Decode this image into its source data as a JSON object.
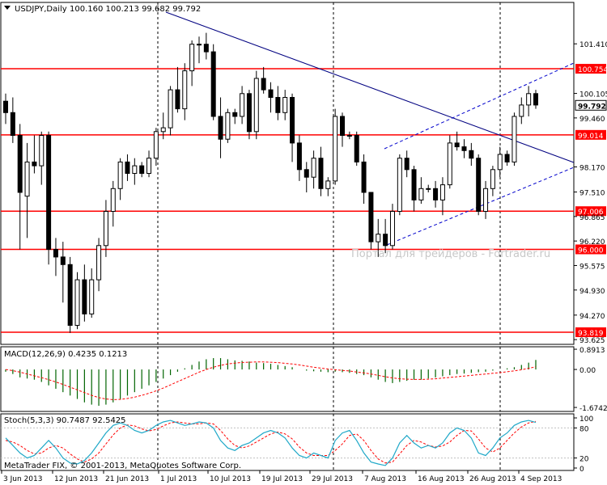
{
  "chart_data": {
    "type": "candlestick",
    "title": "USDJPY,Daily",
    "ohlc_header": "100.160 100.213 99.682 99.792",
    "current_price": "99.792",
    "watermark": "Портал для трейдеров - Fortrader.ru",
    "copyright": "MetaTrader FIX, © 2001-2013, MetaQuotes Software Corp.",
    "price_axis": {
      "ylim": [
        93.5,
        102.5
      ],
      "ticks": [
        "101.410",
        "100.105",
        "99.460",
        "98.170",
        "97.510",
        "96.865",
        "96.220",
        "95.575",
        "94.930",
        "94.270",
        "93.625"
      ]
    },
    "date_labels": [
      "3 Jun 2013",
      "12 Jun 2013",
      "21 Jun 2013",
      "1 Jul 2013",
      "10 Jul 2013",
      "19 Jul 2013",
      "29 Jul 2013",
      "7 Aug 2013",
      "16 Aug 2013",
      "26 Aug 2013",
      "4 Sep 2013"
    ],
    "candles": [
      [
        99.9,
        100.1,
        99.3,
        99.6
      ],
      [
        99.6,
        100.0,
        98.8,
        99.0
      ],
      [
        99.0,
        99.3,
        96.0,
        97.5
      ],
      [
        97.4,
        98.8,
        96.3,
        98.3
      ],
      [
        98.3,
        99.0,
        98.0,
        98.2
      ],
      [
        98.2,
        99.1,
        97.7,
        99.0
      ],
      [
        99.0,
        99.1,
        95.6,
        96.0
      ],
      [
        96.0,
        96.3,
        95.3,
        95.8
      ],
      [
        95.8,
        96.2,
        94.6,
        95.6
      ],
      [
        95.6,
        95.8,
        93.8,
        94.0
      ],
      [
        94.0,
        95.4,
        93.9,
        95.2
      ],
      [
        95.2,
        95.6,
        94.1,
        94.3
      ],
      [
        94.3,
        95.5,
        94.2,
        95.2
      ],
      [
        95.2,
        96.3,
        94.9,
        96.1
      ],
      [
        96.1,
        97.3,
        95.8,
        97.0
      ],
      [
        97.0,
        97.8,
        96.6,
        97.6
      ],
      [
        97.6,
        98.4,
        97.3,
        98.3
      ],
      [
        98.3,
        98.5,
        97.8,
        98.0
      ],
      [
        98.0,
        98.4,
        97.7,
        98.2
      ],
      [
        98.2,
        98.3,
        97.9,
        98.0
      ],
      [
        98.0,
        98.6,
        97.9,
        98.4
      ],
      [
        98.4,
        99.2,
        98.2,
        99.1
      ],
      [
        99.1,
        99.6,
        98.9,
        99.2
      ],
      [
        99.2,
        100.3,
        99.0,
        100.2
      ],
      [
        100.2,
        100.8,
        99.6,
        99.7
      ],
      [
        99.7,
        100.9,
        99.4,
        100.7
      ],
      [
        100.7,
        101.5,
        100.3,
        101.4
      ],
      [
        101.4,
        101.6,
        100.9,
        101.4
      ],
      [
        101.4,
        101.7,
        101.0,
        101.2
      ],
      [
        101.2,
        101.4,
        99.4,
        99.5
      ],
      [
        99.5,
        100.0,
        98.4,
        98.9
      ],
      [
        98.9,
        99.7,
        98.8,
        99.6
      ],
      [
        99.6,
        99.7,
        99.3,
        99.5
      ],
      [
        99.5,
        100.3,
        99.3,
        100.1
      ],
      [
        100.1,
        100.2,
        98.9,
        99.1
      ],
      [
        99.1,
        100.7,
        98.9,
        100.5
      ],
      [
        100.5,
        100.8,
        100.1,
        100.2
      ],
      [
        100.2,
        100.4,
        99.6,
        100.0
      ],
      [
        100.0,
        100.3,
        99.4,
        99.6
      ],
      [
        99.6,
        100.2,
        99.4,
        100.0
      ],
      [
        100.0,
        100.1,
        98.3,
        98.8
      ],
      [
        98.8,
        99.0,
        97.8,
        98.1
      ],
      [
        98.1,
        98.3,
        97.5,
        97.9
      ],
      [
        97.9,
        98.6,
        97.6,
        98.4
      ],
      [
        98.4,
        98.7,
        97.4,
        97.6
      ],
      [
        97.6,
        97.9,
        97.4,
        97.8
      ],
      [
        97.8,
        99.7,
        97.7,
        99.5
      ],
      [
        99.5,
        99.6,
        98.7,
        99.0
      ],
      [
        99.0,
        99.1,
        98.9,
        99.0
      ],
      [
        99.0,
        99.1,
        98.2,
        98.3
      ],
      [
        98.3,
        98.5,
        97.2,
        97.5
      ],
      [
        97.5,
        97.5,
        96.0,
        96.2
      ],
      [
        96.2,
        96.8,
        95.8,
        96.4
      ],
      [
        96.4,
        96.8,
        95.9,
        96.1
      ],
      [
        96.1,
        97.2,
        96.0,
        97.0
      ],
      [
        97.0,
        98.5,
        96.9,
        98.4
      ],
      [
        98.4,
        98.6,
        97.9,
        98.1
      ],
      [
        98.1,
        98.2,
        97.0,
        97.3
      ],
      [
        97.3,
        97.9,
        97.2,
        97.6
      ],
      [
        97.6,
        97.7,
        97.5,
        97.6
      ],
      [
        97.6,
        97.8,
        97.1,
        97.3
      ],
      [
        97.3,
        97.9,
        96.9,
        97.7
      ],
      [
        97.7,
        99.0,
        97.6,
        98.8
      ],
      [
        98.8,
        99.1,
        98.6,
        98.7
      ],
      [
        98.7,
        98.9,
        98.4,
        98.6
      ],
      [
        98.6,
        98.8,
        98.2,
        98.4
      ],
      [
        98.4,
        98.5,
        96.9,
        97.0
      ],
      [
        97.0,
        97.8,
        96.8,
        97.6
      ],
      [
        97.6,
        98.2,
        97.4,
        98.1
      ],
      [
        98.1,
        98.7,
        97.9,
        98.5
      ],
      [
        98.5,
        98.6,
        98.2,
        98.3
      ],
      [
        98.3,
        99.6,
        98.2,
        99.5
      ],
      [
        99.5,
        100.0,
        99.3,
        99.8
      ],
      [
        99.8,
        100.3,
        99.5,
        100.1
      ],
      [
        100.1,
        100.2,
        99.7,
        99.8
      ]
    ],
    "horizontal_levels": [
      "100.754",
      "99.014",
      "97.006",
      "96.000",
      "93.819"
    ],
    "level_color": "#ff0000",
    "trendline_color": "#000080",
    "macd": {
      "label": "MACD(12,26,9) 0.4235 0.1213",
      "ticks": [
        "0.8913",
        "0.00",
        "-1.6742"
      ],
      "ylim": [
        -1.85,
        1.0
      ],
      "histogram": [
        -0.1,
        -0.2,
        -0.35,
        -0.4,
        -0.45,
        -0.55,
        -0.7,
        -0.85,
        -1.0,
        -1.15,
        -1.3,
        -1.45,
        -1.55,
        -1.6,
        -1.55,
        -1.45,
        -1.3,
        -1.15,
        -1.0,
        -0.85,
        -0.7,
        -0.55,
        -0.4,
        -0.25,
        -0.1,
        0.05,
        0.2,
        0.35,
        0.45,
        0.5,
        0.5,
        0.45,
        0.4,
        0.38,
        0.35,
        0.3,
        0.28,
        0.25,
        0.2,
        0.15,
        0.1,
        0.0,
        -0.05,
        -0.08,
        -0.1,
        -0.12,
        -0.1,
        -0.12,
        -0.15,
        -0.2,
        -0.25,
        -0.35,
        -0.45,
        -0.55,
        -0.6,
        -0.55,
        -0.5,
        -0.45,
        -0.45,
        -0.4,
        -0.35,
        -0.3,
        -0.25,
        -0.2,
        -0.18,
        -0.15,
        -0.12,
        -0.1,
        -0.05,
        0.0,
        0.05,
        0.1,
        0.2,
        0.3,
        0.42
      ],
      "signal": [
        0.0,
        -0.05,
        -0.12,
        -0.2,
        -0.28,
        -0.36,
        -0.45,
        -0.55,
        -0.66,
        -0.78,
        -0.9,
        -1.02,
        -1.14,
        -1.24,
        -1.3,
        -1.33,
        -1.32,
        -1.28,
        -1.22,
        -1.14,
        -1.05,
        -0.94,
        -0.82,
        -0.68,
        -0.54,
        -0.4,
        -0.26,
        -0.12,
        0.0,
        0.1,
        0.18,
        0.24,
        0.28,
        0.31,
        0.32,
        0.33,
        0.33,
        0.32,
        0.3,
        0.27,
        0.24,
        0.2,
        0.15,
        0.1,
        0.06,
        0.02,
        -0.01,
        -0.04,
        -0.07,
        -0.11,
        -0.15,
        -0.2,
        -0.26,
        -0.32,
        -0.37,
        -0.41,
        -0.43,
        -0.44,
        -0.44,
        -0.43,
        -0.41,
        -0.38,
        -0.35,
        -0.32,
        -0.29,
        -0.26,
        -0.23,
        -0.2,
        -0.17,
        -0.14,
        -0.1,
        -0.06,
        -0.01,
        0.05,
        0.12
      ],
      "histogram_color": "#006400",
      "signal_color": "#ff0000"
    },
    "stochastic": {
      "label": "Stoch(5,3,3) 90.7487 92.5425",
      "ticks": [
        "100",
        "80",
        "20",
        "0"
      ],
      "ylim": [
        0,
        100
      ],
      "main": [
        60,
        45,
        30,
        20,
        25,
        40,
        55,
        40,
        20,
        10,
        8,
        15,
        30,
        50,
        70,
        85,
        90,
        85,
        75,
        70,
        75,
        85,
        92,
        95,
        90,
        85,
        88,
        92,
        90,
        80,
        55,
        40,
        35,
        45,
        50,
        60,
        70,
        75,
        70,
        60,
        40,
        25,
        20,
        30,
        25,
        20,
        55,
        70,
        75,
        55,
        30,
        12,
        8,
        5,
        20,
        50,
        65,
        50,
        40,
        45,
        40,
        50,
        70,
        80,
        75,
        60,
        30,
        25,
        40,
        60,
        70,
        85,
        92,
        95,
        91
      ],
      "signal": [
        55,
        52,
        45,
        35,
        28,
        30,
        40,
        45,
        40,
        28,
        18,
        12,
        18,
        30,
        48,
        66,
        80,
        86,
        84,
        78,
        74,
        77,
        84,
        90,
        92,
        90,
        88,
        88,
        90,
        88,
        75,
        58,
        45,
        40,
        44,
        52,
        60,
        68,
        72,
        68,
        58,
        42,
        30,
        25,
        25,
        25,
        35,
        48,
        65,
        68,
        55,
        35,
        18,
        10,
        12,
        28,
        45,
        55,
        52,
        45,
        42,
        44,
        52,
        65,
        75,
        74,
        58,
        40,
        32,
        40,
        55,
        70,
        82,
        90,
        93
      ],
      "main_color": "#1fa8c8",
      "signal_color": "#ff0000"
    }
  }
}
